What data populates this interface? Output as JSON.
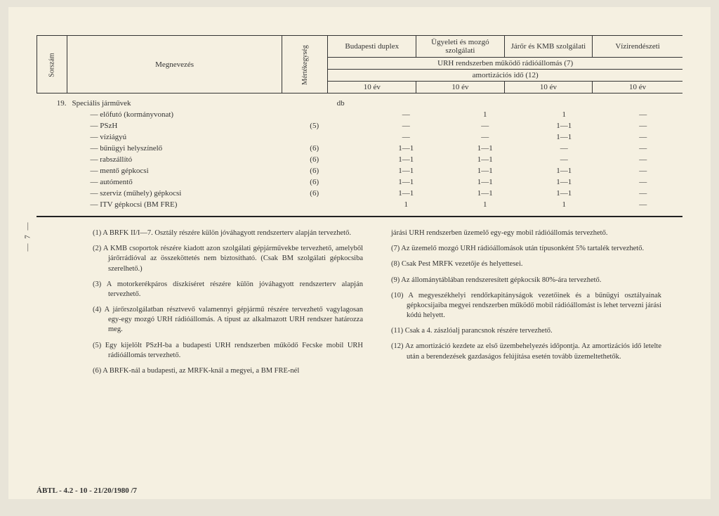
{
  "header": {
    "sorszam": "Sorszám",
    "megnevezes": "Megnevezés",
    "mertekegyseg": "Mértékegység",
    "cols": [
      "Budapesti duplex",
      "Ügyeleti és mozgó szolgálati",
      "Járőr és KMB szolgálati",
      "Vízirendészeti"
    ],
    "sub1": "URH rendszerben működő rádióállomás (7)",
    "sub2": "amortizációs idő (12)",
    "years": [
      "10 év",
      "10 év",
      "10 év",
      "10 év"
    ]
  },
  "section": {
    "num": "19.",
    "title": "Speciális járművek",
    "unit": "db"
  },
  "rows": [
    {
      "label": "— előfutó (kormányvonat)",
      "paren": "",
      "v": [
        "—",
        "1",
        "1",
        "—"
      ]
    },
    {
      "label": "— PSzH",
      "paren": "(5)",
      "v": [
        "—",
        "—",
        "1—1",
        "—"
      ]
    },
    {
      "label": "— víziágyú",
      "paren": "",
      "v": [
        "—",
        "—",
        "1—1",
        "—"
      ]
    },
    {
      "label": "— bűnügyi helyszínelő",
      "paren": "(6)",
      "v": [
        "1—1",
        "1—1",
        "—",
        "—"
      ]
    },
    {
      "label": "— rabszállító",
      "paren": "(6)",
      "v": [
        "1—1",
        "1—1",
        "—",
        "—"
      ]
    },
    {
      "label": "— mentő gépkocsi",
      "paren": "(6)",
      "v": [
        "1—1",
        "1—1",
        "1—1",
        "—"
      ]
    },
    {
      "label": "— autómentő",
      "paren": "(6)",
      "v": [
        "1—1",
        "1—1",
        "1—1",
        "—"
      ]
    },
    {
      "label": "— szerviz (műhely) gépkocsi",
      "paren": "(6)",
      "v": [
        "1—1",
        "1—1",
        "1—1",
        "—"
      ]
    },
    {
      "label": "— ITV gépkocsi (BM FRE)",
      "paren": "",
      "v": [
        "1",
        "1",
        "1",
        "—"
      ]
    }
  ],
  "notes_left": [
    "(1) A BRFK II/I—7. Osztály részére külön jóváhagyott rendszerterv alapján tervezhető.",
    "(2) A KMB csoportok részére kiadott azon szolgálati gépjárművekbe tervezhető, amelyből járőrrádióval az összeköttetés nem biztosítható. (Csak BM szolgálati gépkocsiba szerelhető.)",
    "(3) A motorkerékpáros díszkíséret részére külön jóváhagyott rendszerterv alapján tervezhető.",
    "(4) A járőrszolgálatban résztvevő valamennyi gépjármű részére tervezhető vagylagosan egy-egy mozgó URH rádióállomás. A típust az alkalmazott URH rendszer határozza meg.",
    "(5) Egy kijelölt PSzH-ba a budapesti URH rendszerben működő Fecske mobil URH rádióállomás tervezhető.",
    "(6) A BRFK-nál a budapesti, az MRFK-knál a megyei, a BM FRE-nél"
  ],
  "notes_right": [
    "járási URH rendszerben üzemelő egy-egy mobil rádióállomás tervezhető.",
    "(7) Az üzemelő mozgó URH rádióállomások után típusonként 5% tartalék tervezhető.",
    "(8) Csak Pest MRFK vezetője és helyettesei.",
    "(9) Az állománytáblában rendszeresített gépkocsik 80%-ára tervezhető.",
    "(10) A megyeszékhelyi rendőrkapitányságok vezetőinek és a bűnügyi osztályainak gépkocsijaiba megyei rendszerben működő mobil rádióállomást is lehet tervezni járási kódú helyett.",
    "(11) Csak a 4. zászlóalj parancsnok részére tervezhető.",
    "(12) Az amortizáció kezdete az első üzembehelyezés időpontja. Az amortizációs idő letelte után a berendezések gazdaságos felújítása esetén tovább üzemeltethetők."
  ],
  "side_page": "— 7 —",
  "footer": "ÁBTL - 4.2 - 10 - 21/20/1980  /7"
}
